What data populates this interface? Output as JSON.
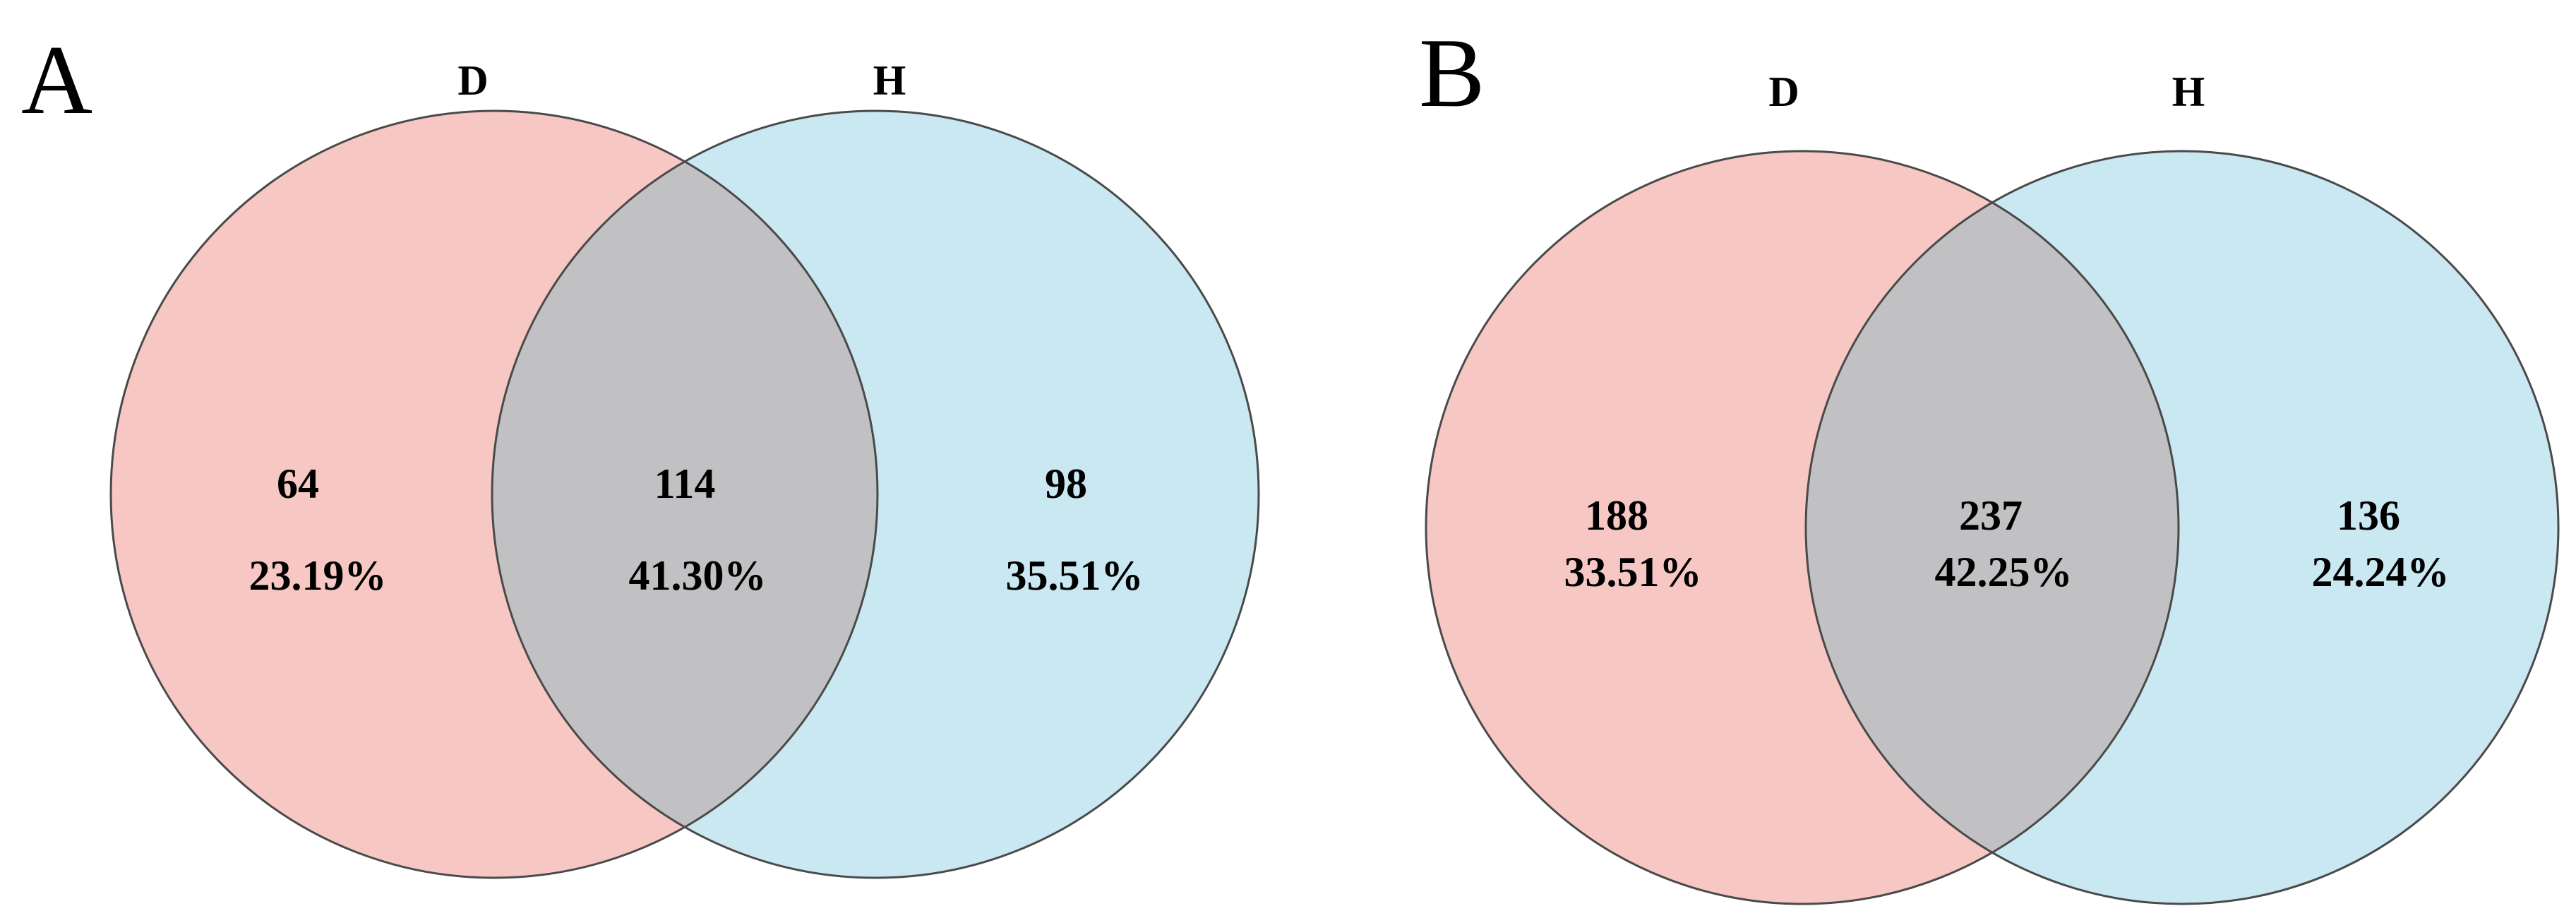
{
  "colors": {
    "set_d": "#f7c8c3",
    "set_h": "#c9e8f2",
    "overlap": "#c1c1c4",
    "outline": "#4a4a4a"
  },
  "panels": [
    {
      "letter": "A",
      "set_labels": {
        "d": "D",
        "h": "H"
      },
      "regions": {
        "d_only": {
          "count": "64",
          "percent": "23.19%"
        },
        "both": {
          "count": "114",
          "percent": "41.30%"
        },
        "h_only": {
          "count": "98",
          "percent": "35.51%"
        }
      }
    },
    {
      "letter": "B",
      "set_labels": {
        "d": "D",
        "h": "H"
      },
      "regions": {
        "d_only": {
          "count": "188",
          "percent": "33.51%"
        },
        "both": {
          "count": "237",
          "percent": "42.25%"
        },
        "h_only": {
          "count": "136",
          "percent": "24.24%"
        }
      }
    }
  ]
}
